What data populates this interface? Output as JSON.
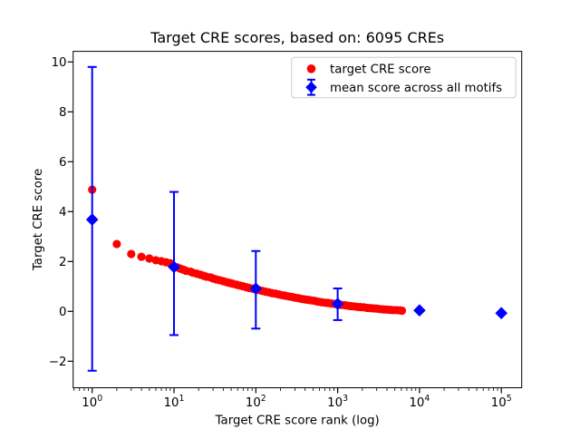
{
  "chart_data": {
    "type": "scatter",
    "title": "Target CRE scores, based on: 6095 CREs",
    "xlabel": "Target CRE score rank (log)",
    "ylabel": "Target CRE score",
    "n_points_depicted": 6095,
    "axes": {
      "xscale": "log",
      "xlim": [
        0.585,
        178000
      ],
      "ylim": [
        -3.06,
        10.43
      ],
      "grid": false,
      "xtick_exponents": [
        0,
        1,
        2,
        3,
        4,
        5
      ],
      "xtick_base": "10",
      "yticks": [
        -2,
        0,
        2,
        4,
        6,
        8,
        10
      ],
      "ytick_labels": [
        "−2",
        "0",
        "2",
        "4",
        "6",
        "8",
        "10"
      ]
    },
    "legend": {
      "position": "upper right"
    },
    "colors": {
      "target_series": "#ff0000",
      "mean_series": "#0000ff",
      "spine": "#000000",
      "legend_edge": "#cccccc",
      "background": "#ffffff"
    },
    "series": [
      {
        "name": "target CRE score",
        "marker": "circle",
        "color": "#ff0000",
        "sampling": "log-spaced subset of the 6095 rendered points",
        "points": [
          [
            1,
            4.88
          ],
          [
            2,
            2.7
          ],
          [
            3,
            2.3
          ],
          [
            4,
            2.19
          ],
          [
            5,
            2.12
          ],
          [
            6,
            2.05
          ],
          [
            7,
            2.01
          ],
          [
            8,
            1.97
          ],
          [
            9,
            1.93
          ],
          [
            10,
            1.8
          ],
          [
            11,
            1.76
          ],
          [
            12,
            1.71
          ],
          [
            13,
            1.67
          ],
          [
            14,
            1.63
          ],
          [
            16,
            1.59
          ],
          [
            17,
            1.55
          ],
          [
            19,
            1.51
          ],
          [
            21,
            1.47
          ],
          [
            23,
            1.43
          ],
          [
            25,
            1.39
          ],
          [
            28,
            1.36
          ],
          [
            30,
            1.32
          ],
          [
            33,
            1.28
          ],
          [
            36,
            1.25
          ],
          [
            40,
            1.21
          ],
          [
            44,
            1.17
          ],
          [
            48,
            1.14
          ],
          [
            52,
            1.11
          ],
          [
            58,
            1.07
          ],
          [
            63,
            1.04
          ],
          [
            69,
            1.01
          ],
          [
            76,
            0.97
          ],
          [
            83,
            0.94
          ],
          [
            91,
            0.91
          ],
          [
            100,
            0.88
          ],
          [
            110,
            0.85
          ],
          [
            120,
            0.82
          ],
          [
            132,
            0.79
          ],
          [
            145,
            0.76
          ],
          [
            158,
            0.73
          ],
          [
            174,
            0.71
          ],
          [
            191,
            0.68
          ],
          [
            209,
            0.65
          ],
          [
            229,
            0.63
          ],
          [
            251,
            0.6
          ],
          [
            275,
            0.58
          ],
          [
            302,
            0.55
          ],
          [
            331,
            0.53
          ],
          [
            363,
            0.5
          ],
          [
            398,
            0.48
          ],
          [
            437,
            0.46
          ],
          [
            479,
            0.44
          ],
          [
            525,
            0.42
          ],
          [
            575,
            0.39
          ],
          [
            631,
            0.37
          ],
          [
            692,
            0.35
          ],
          [
            759,
            0.34
          ],
          [
            832,
            0.32
          ],
          [
            912,
            0.3
          ],
          [
            1000,
            0.28
          ],
          [
            1096,
            0.26
          ],
          [
            1202,
            0.25
          ],
          [
            1318,
            0.23
          ],
          [
            1445,
            0.21
          ],
          [
            1585,
            0.2
          ],
          [
            1738,
            0.18
          ],
          [
            1905,
            0.17
          ],
          [
            2089,
            0.16
          ],
          [
            2291,
            0.14
          ],
          [
            2512,
            0.13
          ],
          [
            2754,
            0.12
          ],
          [
            3020,
            0.11
          ],
          [
            3311,
            0.09
          ],
          [
            3631,
            0.08
          ],
          [
            3981,
            0.07
          ],
          [
            4365,
            0.06
          ],
          [
            4786,
            0.05
          ],
          [
            5248,
            0.05
          ],
          [
            5754,
            0.04
          ],
          [
            6095,
            0.03
          ]
        ]
      },
      {
        "name": "mean score across all motifs",
        "marker": "diamond",
        "color": "#0000ff",
        "points": [
          {
            "rank": 1,
            "mean": 3.68,
            "bar_top": 9.8,
            "bar_bottom": -2.38
          },
          {
            "rank": 10,
            "mean": 1.78,
            "bar_top": 4.79,
            "bar_bottom": -0.95
          },
          {
            "rank": 100,
            "mean": 0.91,
            "bar_top": 2.42,
            "bar_bottom": -0.69
          },
          {
            "rank": 1000,
            "mean": 0.3,
            "bar_top": 0.92,
            "bar_bottom": -0.35
          },
          {
            "rank": 10000,
            "mean": 0.04,
            "bar_top": null,
            "bar_bottom": null
          },
          {
            "rank": 100000,
            "mean": -0.07,
            "bar_top": null,
            "bar_bottom": null
          }
        ]
      }
    ]
  }
}
